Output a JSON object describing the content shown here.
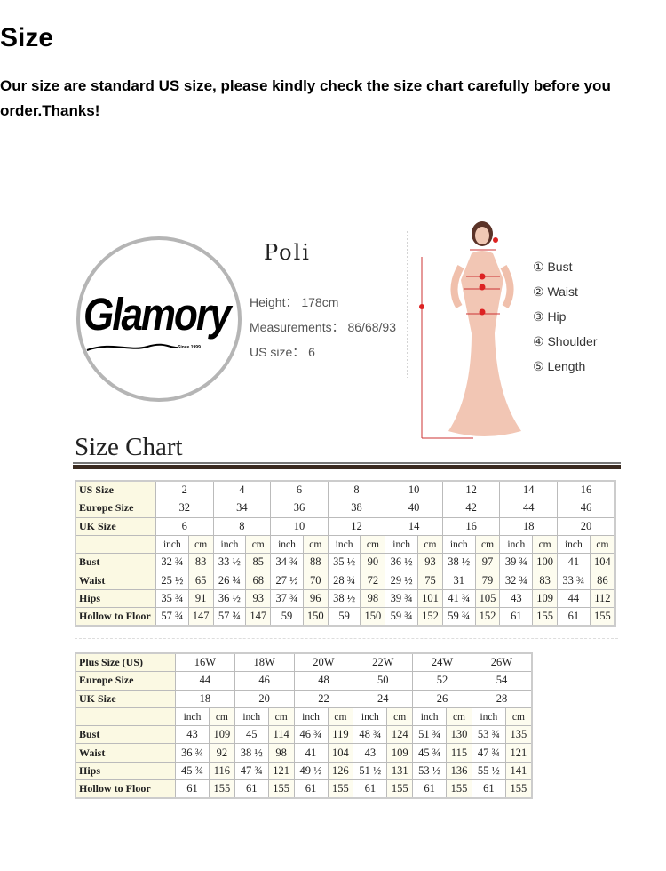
{
  "header": {
    "title": "Size",
    "intro": "Our size are standard US size, please kindly check the size chart carefully before you order.Thanks!"
  },
  "logo": {
    "brand": "Glamory",
    "since": "Since 1999"
  },
  "model": {
    "name": "Poli",
    "height": "Height： 178cm",
    "measurements": "Measurements： 86/68/93",
    "us_size": "US size： 6"
  },
  "legend": [
    "① Bust",
    "② Waist",
    "③ Hip",
    "④ Shoulder",
    "⑤ Length"
  ],
  "size_chart_title": "Size Chart",
  "units": {
    "inch": "inch",
    "cm": "cm"
  },
  "standard_table": {
    "header_rows": [
      {
        "label": "US Size",
        "values": [
          "2",
          "4",
          "6",
          "8",
          "10",
          "12",
          "14",
          "16"
        ]
      },
      {
        "label": "Europe Size",
        "values": [
          "32",
          "34",
          "36",
          "38",
          "40",
          "42",
          "44",
          "46"
        ]
      },
      {
        "label": "UK Size",
        "values": [
          "6",
          "8",
          "10",
          "12",
          "14",
          "16",
          "18",
          "20"
        ]
      }
    ],
    "measure_rows": [
      {
        "label": "Bust",
        "values": [
          "32 ¾",
          "83",
          "33 ½",
          "85",
          "34 ¾",
          "88",
          "35 ½",
          "90",
          "36 ½",
          "93",
          "38 ½",
          "97",
          "39 ¾",
          "100",
          "41",
          "104"
        ]
      },
      {
        "label": "Waist",
        "values": [
          "25 ½",
          "65",
          "26 ¾",
          "68",
          "27 ½",
          "70",
          "28 ¾",
          "72",
          "29 ½",
          "75",
          "31",
          "79",
          "32 ¾",
          "83",
          "33 ¾",
          "86"
        ]
      },
      {
        "label": "Hips",
        "values": [
          "35 ¾",
          "91",
          "36 ½",
          "93",
          "37 ¾",
          "96",
          "38 ½",
          "98",
          "39 ¾",
          "101",
          "41 ¾",
          "105",
          "43",
          "109",
          "44",
          "112"
        ]
      },
      {
        "label": "Hollow to Floor",
        "values": [
          "57 ¾",
          "147",
          "57 ¾",
          "147",
          "59",
          "150",
          "59",
          "150",
          "59 ¾",
          "152",
          "59 ¾",
          "152",
          "61",
          "155",
          "61",
          "155"
        ]
      }
    ]
  },
  "plus_table": {
    "header_rows": [
      {
        "label": "Plus Size (US)",
        "values": [
          "16W",
          "18W",
          "20W",
          "22W",
          "24W",
          "26W"
        ]
      },
      {
        "label": "Europe Size",
        "values": [
          "44",
          "46",
          "48",
          "50",
          "52",
          "54"
        ]
      },
      {
        "label": "UK Size",
        "values": [
          "18",
          "20",
          "22",
          "24",
          "26",
          "28"
        ]
      }
    ],
    "measure_rows": [
      {
        "label": "Bust",
        "values": [
          "43",
          "109",
          "45",
          "114",
          "46 ¾",
          "119",
          "48 ¾",
          "124",
          "51 ¾",
          "130",
          "53 ¾",
          "135"
        ]
      },
      {
        "label": "Waist",
        "values": [
          "36 ¾",
          "92",
          "38 ½",
          "98",
          "41",
          "104",
          "43",
          "109",
          "45 ¾",
          "115",
          "47 ¾",
          "121"
        ]
      },
      {
        "label": "Hips",
        "values": [
          "45 ¾",
          "116",
          "47 ¾",
          "121",
          "49 ½",
          "126",
          "51 ½",
          "131",
          "53 ½",
          "136",
          "55 ½",
          "141"
        ]
      },
      {
        "label": "Hollow to Floor",
        "values": [
          "61",
          "155",
          "61",
          "155",
          "61",
          "155",
          "61",
          "155",
          "61",
          "155",
          "61",
          "155"
        ]
      }
    ]
  }
}
